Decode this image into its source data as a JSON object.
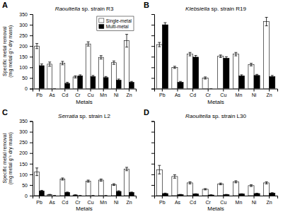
{
  "chart_data": [
    {
      "type": "bar",
      "title": "Raoultella sp. strain R3",
      "annotations": [
        {
          "text": "A"
        }
      ],
      "x_label": "Metals",
      "y_label": "Specific metal removal (mg metal g⁻¹ dry mass)",
      "categories": [
        "Pb",
        "As",
        "Cd",
        "Cr",
        "Cu",
        "Mn",
        "Ni",
        "Zn"
      ],
      "series": [
        {
          "name": "Single-metal",
          "color": "#ffffff",
          "values": [
            200,
            115,
            120,
            55,
            210,
            147,
            122,
            225
          ],
          "errors": [
            12,
            10,
            8,
            5,
            10,
            8,
            8,
            30
          ]
        },
        {
          "name": "Multi-metal",
          "color": "#000000",
          "values": [
            108,
            0,
            25,
            60,
            57,
            52,
            40,
            30
          ],
          "errors": [
            8,
            0,
            5,
            5,
            5,
            5,
            5,
            4
          ]
        }
      ],
      "ylim": [
        0,
        350
      ],
      "yticks": [
        0,
        50,
        100,
        150,
        200,
        250,
        300,
        350
      ],
      "grid": false,
      "legend": "upper right"
    },
    {
      "type": "bar",
      "title": "Klebsiella sp. strain R19",
      "annotations": [
        {
          "text": "B"
        }
      ],
      "x_label": "Metals",
      "categories": [
        "Pb",
        "As",
        "Cd",
        "Cr",
        "Cu",
        "Mn",
        "Ni",
        "Zn"
      ],
      "series": [
        {
          "color": "#ffffff",
          "values": [
            207,
            100,
            162,
            50,
            152,
            162,
            113,
            315
          ],
          "errors": [
            10,
            5,
            8,
            5,
            6,
            8,
            6,
            20
          ]
        },
        {
          "color": "#000000",
          "values": [
            300,
            30,
            148,
            0,
            143,
            60,
            62,
            57
          ],
          "errors": [
            10,
            4,
            8,
            0,
            7,
            5,
            5,
            5
          ]
        }
      ],
      "ylim": [
        0,
        350
      ],
      "yticks": [
        0,
        50,
        100,
        150,
        200,
        250,
        300,
        350
      ],
      "grid": false,
      "tick_labels": "x"
    },
    {
      "type": "bar",
      "title": "Serratia sp. strain L2",
      "annotations": [
        {
          "text": "C"
        }
      ],
      "x_label": "Metals",
      "y_label": "Specific metal removal (mg metal g⁻¹ dry mass)",
      "categories": [
        "Pb",
        "As",
        "Cd",
        "Cr",
        "Cu",
        "Mn",
        "Ni",
        "Zn"
      ],
      "series": [
        {
          "color": "#ffffff",
          "values": [
            112,
            5,
            78,
            3,
            68,
            73,
            52,
            125
          ],
          "errors": [
            18,
            1,
            5,
            1,
            5,
            5,
            4,
            8
          ]
        },
        {
          "color": "#000000",
          "values": [
            22,
            0,
            15,
            0,
            0,
            0,
            20,
            15
          ],
          "errors": [
            3,
            0,
            2,
            0,
            0,
            0,
            3,
            2
          ]
        }
      ],
      "ylim": [
        0,
        350
      ],
      "yticks": [
        0,
        50,
        100,
        150,
        200,
        250,
        300,
        350
      ],
      "grid": false
    },
    {
      "type": "bar",
      "title": "Raoultella sp. strain L30",
      "annotations": [
        {
          "text": "D"
        }
      ],
      "x_label": "Metals",
      "categories": [
        "Pb",
        "As",
        "Cd",
        "Cr",
        "Cu",
        "Mn",
        "Ni",
        "Zn"
      ],
      "series": [
        {
          "color": "#ffffff",
          "values": [
            122,
            90,
            60,
            30,
            55,
            65,
            47,
            60
          ],
          "errors": [
            20,
            8,
            5,
            3,
            4,
            5,
            4,
            5
          ]
        },
        {
          "color": "#000000",
          "values": [
            10,
            5,
            8,
            3,
            5,
            8,
            10,
            12
          ],
          "errors": [
            2,
            1,
            1,
            1,
            1,
            1,
            1,
            2
          ]
        }
      ],
      "ylim": [
        0,
        350
      ],
      "yticks": [
        0,
        50,
        100,
        150,
        200,
        250,
        300,
        350
      ],
      "grid": false,
      "tick_labels": "x"
    }
  ]
}
